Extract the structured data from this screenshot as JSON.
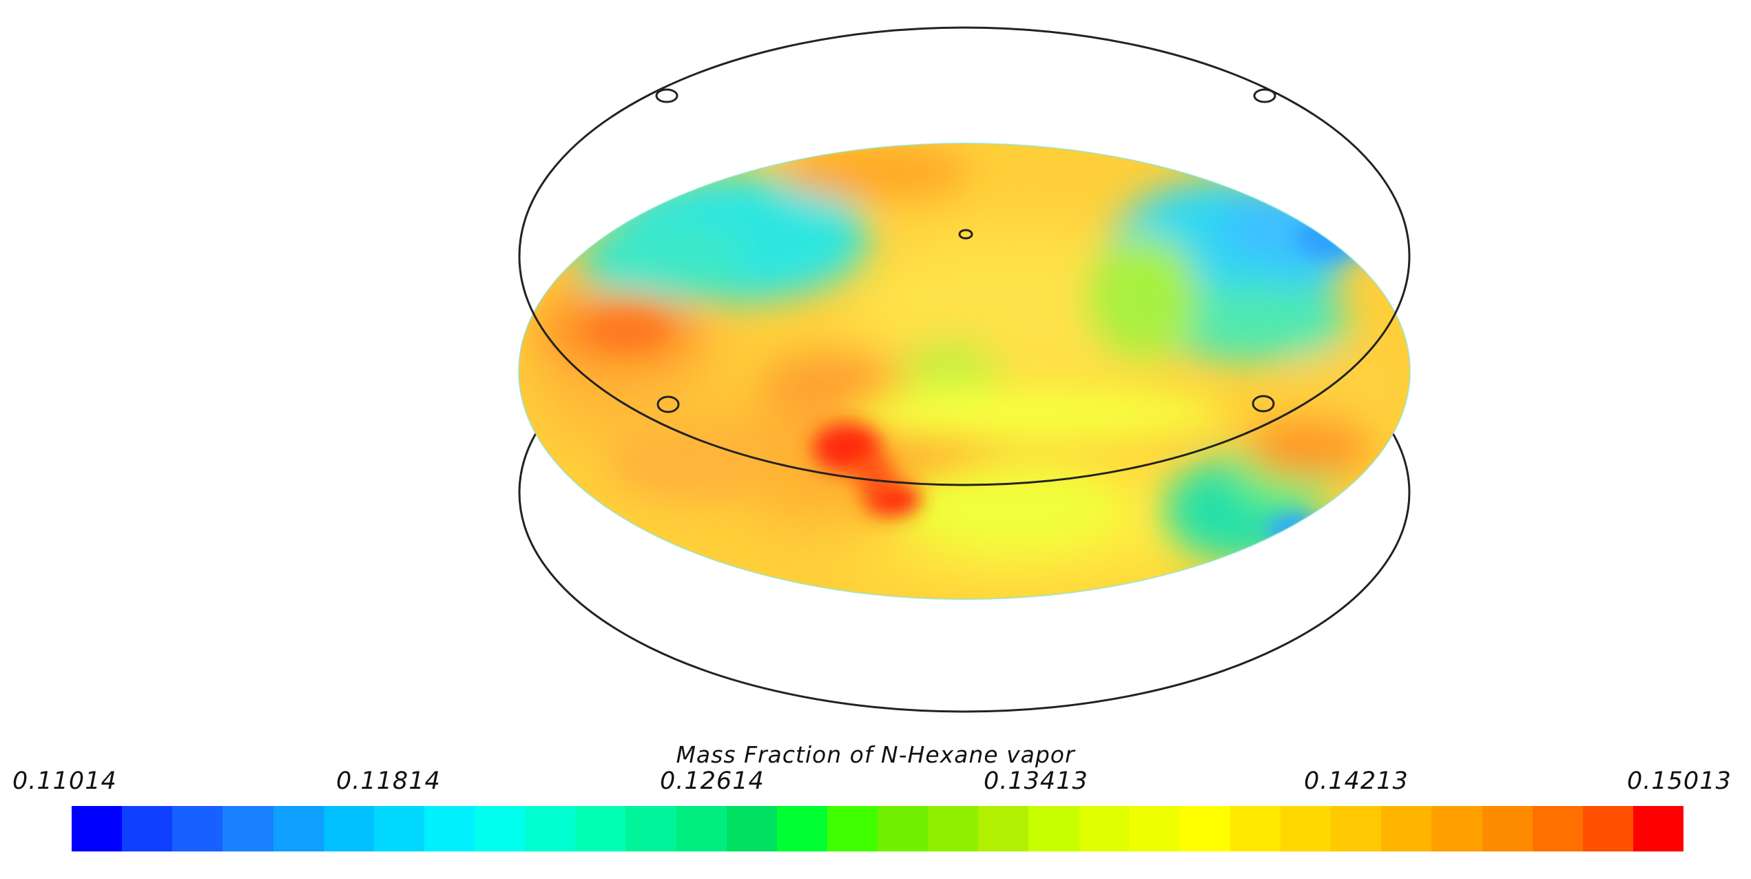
{
  "legend": {
    "title": "Mass Fraction of N-Hexane vapor",
    "ticks": [
      "0.11014",
      "0.11814",
      "0.12614",
      "0.13413",
      "0.14213",
      "0.15013"
    ],
    "min": 0.11014,
    "max": 0.15013,
    "colors": [
      "#0000ff",
      "#1040ff",
      "#1860ff",
      "#1a80ff",
      "#10a0ff",
      "#00c0ff",
      "#00d8ff",
      "#00f0ff",
      "#00ffee",
      "#00ffd0",
      "#00ffb4",
      "#00f59a",
      "#00ee80",
      "#00e060",
      "#00ff30",
      "#40ff00",
      "#70f000",
      "#90f000",
      "#b0f000",
      "#c8ff00",
      "#e0ff00",
      "#f0ff00",
      "#ffff00",
      "#ffe800",
      "#ffd800",
      "#ffc800",
      "#ffb400",
      "#ffa000",
      "#ff8c00",
      "#ff7000",
      "#ff5000",
      "#ff0000"
    ]
  }
}
